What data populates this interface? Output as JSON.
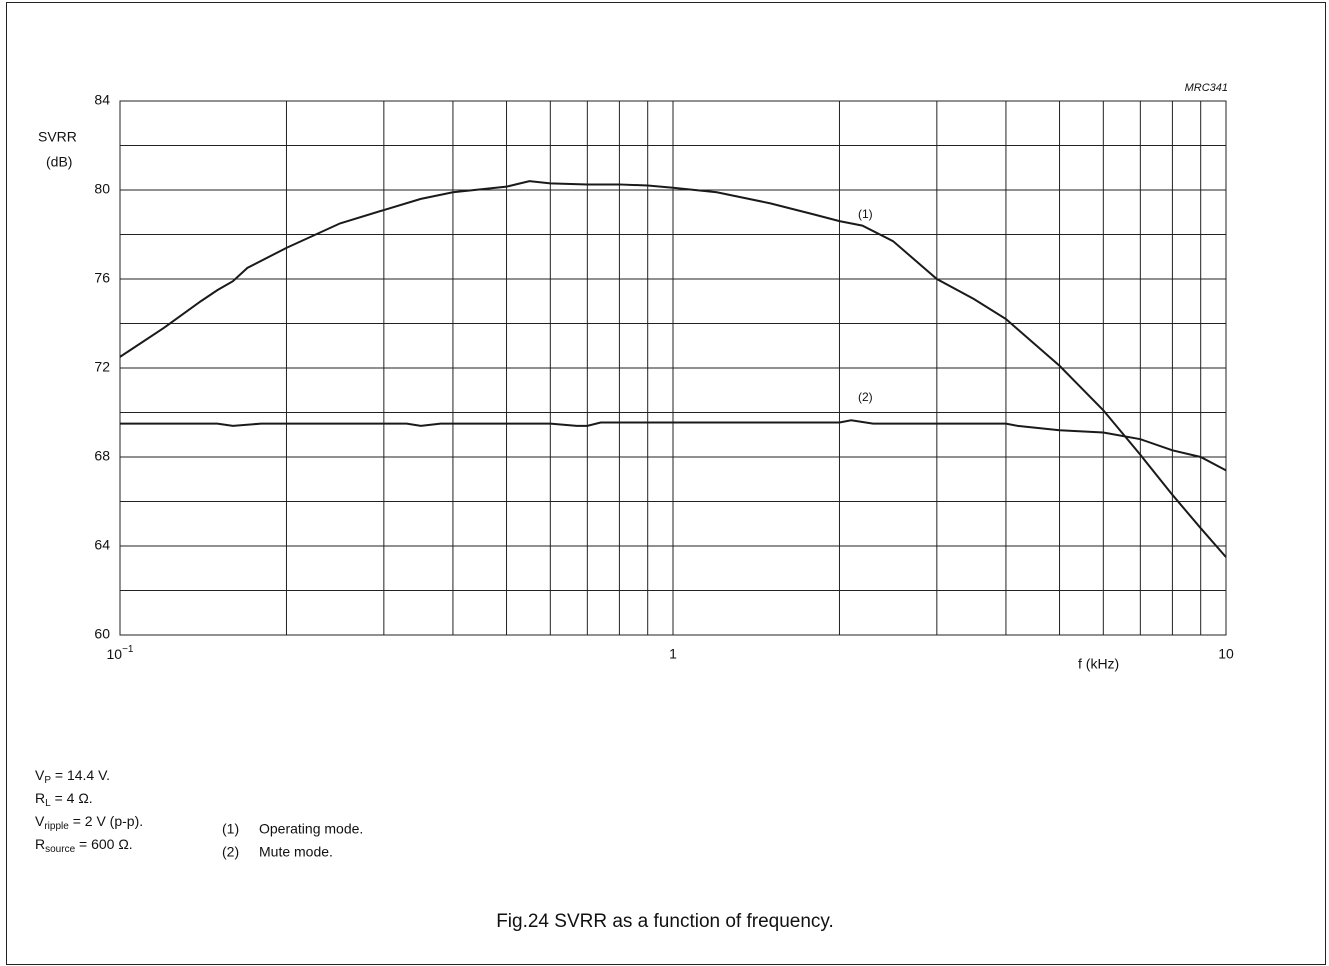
{
  "chart_data": {
    "type": "line",
    "code": "MRC341",
    "y_label": "SVRR",
    "y_unit": "(dB)",
    "x_label": "f (kHz)",
    "log_x": true,
    "grid": true,
    "color": "#1a1a1a",
    "xlim": [
      0.1,
      10
    ],
    "xticks": [
      {
        "value": 0.1,
        "label": "10",
        "exponent": "−1"
      },
      1,
      10
    ],
    "xminor": [
      0.2,
      0.3,
      0.4,
      0.5,
      0.6,
      0.7,
      0.8,
      0.9,
      2,
      3,
      4,
      5,
      6,
      7,
      8,
      9
    ],
    "ylim": [
      60,
      84
    ],
    "yticks": [
      60,
      64,
      68,
      72,
      76,
      80,
      84
    ],
    "yminor": [
      62,
      66,
      70,
      74,
      78,
      82
    ],
    "series": [
      {
        "name": "(1)",
        "x": [
          0.1,
          0.12,
          0.14,
          0.15,
          0.16,
          0.17,
          0.2,
          0.25,
          0.3,
          0.35,
          0.4,
          0.5,
          0.55,
          0.6,
          0.7,
          0.8,
          0.9,
          1,
          1.2,
          1.5,
          1.8,
          2,
          2.2,
          2.5,
          3,
          3.5,
          4,
          5,
          6,
          7,
          8,
          9,
          10
        ],
        "values": [
          72.5,
          73.8,
          75.0,
          75.5,
          75.9,
          76.5,
          77.4,
          78.5,
          79.1,
          79.6,
          79.9,
          80.15,
          80.4,
          80.3,
          80.25,
          80.25,
          80.2,
          80.1,
          79.9,
          79.4,
          78.9,
          78.6,
          78.4,
          77.7,
          76.0,
          75.1,
          74.2,
          72.1,
          70.1,
          68.1,
          66.3,
          64.8,
          63.5
        ]
      },
      {
        "name": "(2)",
        "x": [
          0.1,
          0.15,
          0.16,
          0.18,
          0.3,
          0.33,
          0.35,
          0.38,
          0.6,
          0.67,
          0.7,
          0.74,
          1,
          2,
          2.1,
          2.3,
          3,
          4,
          4.2,
          5,
          6,
          7,
          8,
          9,
          10
        ],
        "values": [
          69.5,
          69.5,
          69.4,
          69.5,
          69.5,
          69.5,
          69.4,
          69.5,
          69.5,
          69.4,
          69.4,
          69.55,
          69.55,
          69.55,
          69.65,
          69.5,
          69.5,
          69.5,
          69.4,
          69.2,
          69.1,
          68.8,
          68.3,
          68.0,
          67.4
        ]
      }
    ],
    "conditions": [
      {
        "main": "V",
        "sub": "P",
        "rest": " = 14.4 V."
      },
      {
        "main": "R",
        "sub": "L",
        "rest": " = 4 Ω."
      },
      {
        "main": "V",
        "sub": "ripple",
        "rest": " = 2 V (p-p)."
      },
      {
        "main": "R",
        "sub": "source",
        "rest": " = 600 Ω."
      }
    ],
    "legend": [
      {
        "key": "(1)",
        "text": "Operating mode."
      },
      {
        "key": "(2)",
        "text": "Mute mode."
      }
    ],
    "caption": "Fig.24  SVRR as a function of frequency."
  }
}
